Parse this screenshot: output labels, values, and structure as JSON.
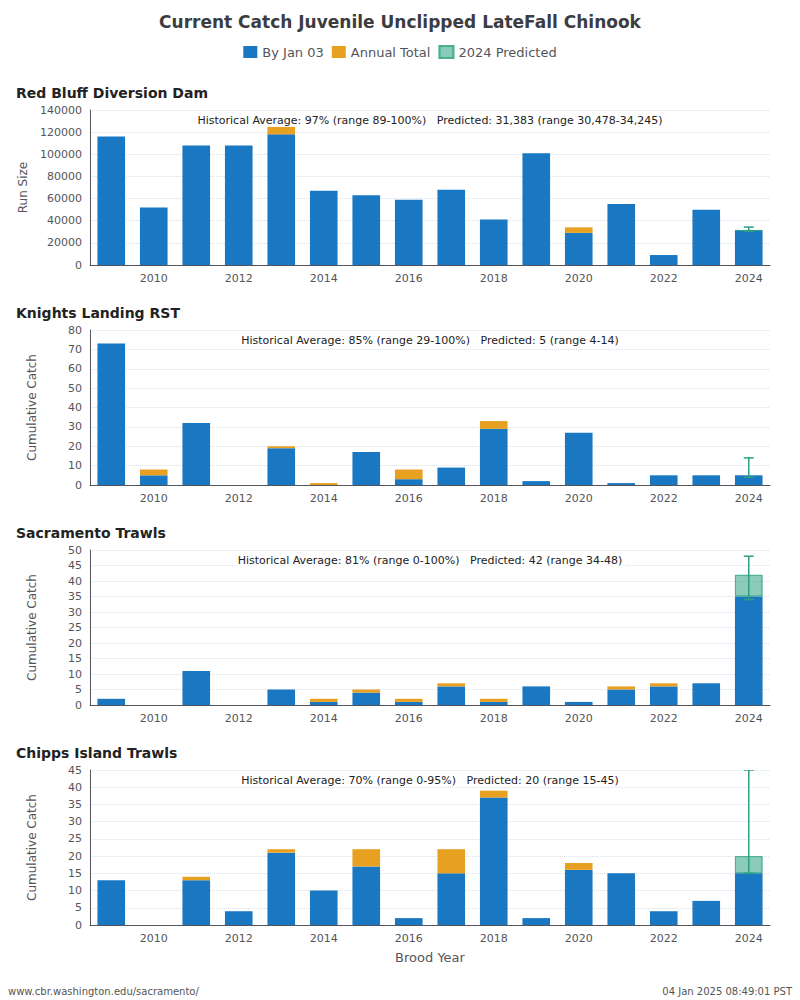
{
  "title": "Current Catch Juvenile Unclipped LateFall Chinook",
  "annotations": [
    "www.cbr.washington.edu/sacramento/",
    "04 Jan 2025 08:49:01 PST"
  ],
  "chart_data": [
    {
      "type": "bar",
      "stacked": true,
      "grid": true,
      "legend": "top",
      "title": "Red Bluff Diversion Dam",
      "ylabel": "Run Size",
      "annotation": "Historical Average: 97% (range 89-100%)   Predicted: 31,383 (range 30,478-34,245)",
      "categories": [
        null,
        "2010",
        null,
        "2012",
        null,
        "2014",
        null,
        "2016",
        null,
        "2018",
        null,
        "2020",
        null,
        "2022",
        null,
        "2024"
      ],
      "series": [
        {
          "name": "By Jan 03",
          "color": "#1a78c2",
          "values": [
            116000,
            52000,
            108000,
            108000,
            118000,
            67000,
            63000,
            59000,
            68000,
            41000,
            101000,
            29000,
            55000,
            9000,
            50000,
            31000
          ]
        },
        {
          "name": "Annual Total",
          "color": "#e8a020",
          "values": [
            0,
            0,
            0,
            0,
            7000,
            0,
            0,
            0,
            0,
            0,
            0,
            5000,
            0,
            0,
            0,
            0
          ]
        },
        {
          "name": "2024 Predicted",
          "color": "#2ca080",
          "values": [
            null,
            null,
            null,
            null,
            null,
            null,
            null,
            null,
            null,
            null,
            null,
            null,
            null,
            null,
            null,
            383
          ],
          "low": [
            null,
            null,
            null,
            null,
            null,
            null,
            null,
            null,
            null,
            null,
            null,
            null,
            null,
            null,
            null,
            30478
          ],
          "high": [
            null,
            null,
            null,
            null,
            null,
            null,
            null,
            null,
            null,
            null,
            null,
            null,
            null,
            null,
            null,
            34245
          ]
        }
      ],
      "ylim": [
        0,
        140000
      ],
      "yticks": [
        0,
        20000,
        40000,
        60000,
        80000,
        100000,
        120000,
        140000
      ]
    },
    {
      "type": "bar",
      "stacked": true,
      "grid": true,
      "legend": "top",
      "title": "Knights Landing RST",
      "ylabel": "Cumulative Catch",
      "annotation": "Historical Average: 85% (range 29-100%)   Predicted: 5 (range 4-14)",
      "categories": [
        null,
        "2010",
        null,
        "2012",
        null,
        "2014",
        null,
        "2016",
        null,
        "2018",
        null,
        "2020",
        null,
        "2022",
        null,
        "2024"
      ],
      "series": [
        {
          "name": "By Jan 03",
          "color": "#1a78c2",
          "values": [
            73,
            5,
            32,
            0,
            19,
            0,
            17,
            3,
            9,
            29,
            2,
            27,
            1,
            5,
            5,
            5
          ]
        },
        {
          "name": "Annual Total",
          "color": "#e8a020",
          "values": [
            0,
            3,
            0,
            0,
            1,
            1,
            0,
            5,
            0,
            4,
            0,
            0,
            0,
            0,
            0,
            0
          ]
        },
        {
          "name": "2024 Predicted",
          "color": "#2ca080",
          "values": [
            null,
            null,
            null,
            null,
            null,
            null,
            null,
            null,
            null,
            null,
            null,
            null,
            null,
            null,
            null,
            null
          ],
          "low": [
            null,
            null,
            null,
            null,
            null,
            null,
            null,
            null,
            null,
            null,
            null,
            null,
            null,
            null,
            null,
            4
          ],
          "high": [
            null,
            null,
            null,
            null,
            null,
            null,
            null,
            null,
            null,
            null,
            null,
            null,
            null,
            null,
            null,
            14
          ]
        }
      ],
      "ylim": [
        0,
        80
      ],
      "yticks": [
        0,
        10,
        20,
        30,
        40,
        50,
        60,
        70,
        80
      ]
    },
    {
      "type": "bar",
      "stacked": true,
      "grid": true,
      "legend": "top",
      "title": "Sacramento Trawls",
      "ylabel": "Cumulative Catch",
      "annotation": "Historical Average: 81% (range 0-100%)   Predicted: 42 (range 34-48)",
      "categories": [
        null,
        "2010",
        null,
        "2012",
        null,
        "2014",
        null,
        "2016",
        null,
        "2018",
        null,
        "2020",
        null,
        "2022",
        null,
        "2024"
      ],
      "series": [
        {
          "name": "By Jan 03",
          "color": "#1a78c2",
          "values": [
            2,
            0,
            11,
            0,
            5,
            1,
            4,
            1,
            6,
            1,
            6,
            1,
            5,
            6,
            7,
            35
          ]
        },
        {
          "name": "Annual Total",
          "color": "#e8a020",
          "values": [
            0,
            0,
            0,
            0,
            0,
            1,
            1,
            1,
            1,
            1,
            0,
            0,
            1,
            1,
            0,
            0
          ]
        },
        {
          "name": "2024 Predicted",
          "color": "#2ca080",
          "values": [
            null,
            null,
            null,
            null,
            null,
            null,
            null,
            null,
            null,
            null,
            null,
            null,
            null,
            null,
            null,
            7
          ],
          "low": [
            null,
            null,
            null,
            null,
            null,
            null,
            null,
            null,
            null,
            null,
            null,
            null,
            null,
            null,
            null,
            34
          ],
          "high": [
            null,
            null,
            null,
            null,
            null,
            null,
            null,
            null,
            null,
            null,
            null,
            null,
            null,
            null,
            null,
            48
          ]
        }
      ],
      "ylim": [
        0,
        50
      ],
      "yticks": [
        0,
        5,
        10,
        15,
        20,
        25,
        30,
        35,
        40,
        45,
        50
      ]
    },
    {
      "type": "bar",
      "stacked": true,
      "grid": true,
      "legend": "top",
      "title": "Chipps Island Trawls",
      "ylabel": "Cumulative Catch",
      "xlabel": "Brood Year",
      "annotation": "Historical Average: 70% (range 0-95%)   Predicted: 20 (range 15-45)",
      "categories": [
        null,
        "2010",
        null,
        "2012",
        null,
        "2014",
        null,
        "2016",
        null,
        "2018",
        null,
        "2020",
        null,
        "2022",
        null,
        "2024"
      ],
      "series": [
        {
          "name": "By Jan 03",
          "color": "#1a78c2",
          "values": [
            13,
            0,
            13,
            4,
            21,
            10,
            17,
            2,
            15,
            37,
            2,
            16,
            15,
            4,
            7,
            15
          ]
        },
        {
          "name": "Annual Total",
          "color": "#e8a020",
          "values": [
            0,
            0,
            1,
            0,
            1,
            0,
            5,
            0,
            7,
            2,
            0,
            2,
            0,
            0,
            0,
            0
          ]
        },
        {
          "name": "2024 Predicted",
          "color": "#2ca080",
          "values": [
            null,
            null,
            null,
            null,
            null,
            null,
            null,
            null,
            null,
            null,
            null,
            null,
            null,
            null,
            null,
            5
          ],
          "low": [
            null,
            null,
            null,
            null,
            null,
            null,
            null,
            null,
            null,
            null,
            null,
            null,
            null,
            null,
            null,
            15
          ],
          "high": [
            null,
            null,
            null,
            null,
            null,
            null,
            null,
            null,
            null,
            null,
            null,
            null,
            null,
            null,
            null,
            45
          ]
        }
      ],
      "ylim": [
        0,
        45
      ],
      "yticks": [
        0,
        5,
        10,
        15,
        20,
        25,
        30,
        35,
        40,
        45
      ]
    }
  ]
}
